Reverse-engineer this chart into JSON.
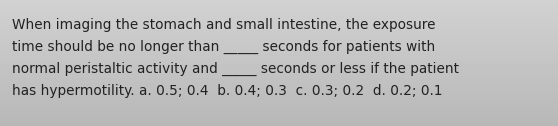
{
  "line1": "When imaging the stomach and small intestine, the exposure",
  "line2": "time should be no longer than _____ seconds for patients with",
  "line3": "normal peristaltic activity and _____ seconds or less if the patient",
  "line4": "has hypermotility. a. 0.5; 0.4  b. 0.4; 0.3  c. 0.3; 0.2  d. 0.2; 0.1",
  "bg_color": "#c8c8c8",
  "text_color": "#222222",
  "font_size": 9.8,
  "fig_width": 5.58,
  "fig_height": 1.26,
  "dpi": 100
}
